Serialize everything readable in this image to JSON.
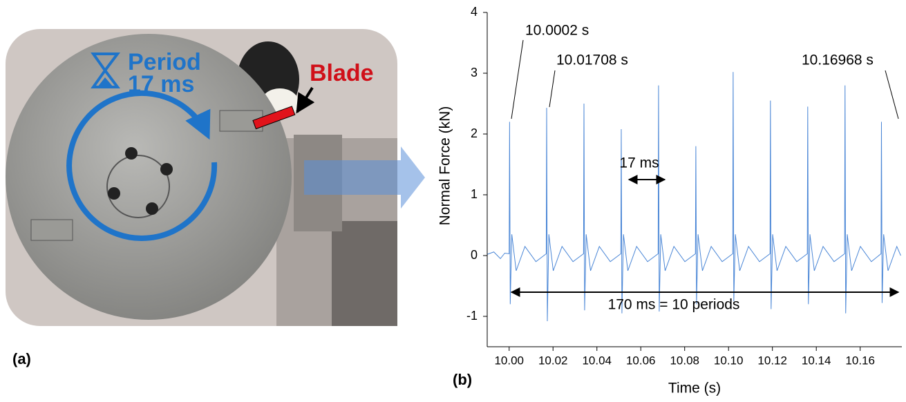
{
  "photo": {
    "period_label": "Period",
    "period_value": "17 ms",
    "blade_label": "Blade",
    "panel_label": "(a)"
  },
  "chart_data": {
    "type": "line",
    "panel_label": "(b)",
    "x_label": "Time (s)",
    "y_label": "Normal Force (kN)",
    "xlim": [
      9.99,
      10.179
    ],
    "ylim": [
      -1.5,
      4
    ],
    "xticks": [
      {
        "value": 10.0,
        "label": "10.00"
      },
      {
        "value": 10.02,
        "label": "10.02"
      },
      {
        "value": 10.04,
        "label": "10.04"
      },
      {
        "value": 10.06,
        "label": "10.06"
      },
      {
        "value": 10.08,
        "label": "10.08"
      },
      {
        "value": 10.1,
        "label": "10.10"
      },
      {
        "value": 10.12,
        "label": "10.12"
      },
      {
        "value": 10.14,
        "label": "10.14"
      },
      {
        "value": 10.16,
        "label": "10.16"
      }
    ],
    "yticks": [
      -1,
      0,
      1,
      2,
      3,
      4
    ],
    "annotations": [
      "10.0002 s",
      "10.01708 s",
      "10.16968 s",
      "17 ms",
      "170 ms = 10 periods"
    ],
    "series": [
      {
        "color": "#4a86d6",
        "x": [
          9.99,
          9.993,
          9.996,
          9.998,
          10.0,
          10.0002,
          10.0005,
          10.0012,
          10.0032,
          10.0072,
          10.0122,
          10.0169,
          10.0171,
          10.0174,
          10.0181,
          10.0201,
          10.0241,
          10.0291,
          10.0339,
          10.0341,
          10.0344,
          10.0351,
          10.0371,
          10.0411,
          10.0461,
          10.0509,
          10.0511,
          10.0514,
          10.0521,
          10.0541,
          10.0581,
          10.0631,
          10.0679,
          10.0681,
          10.0684,
          10.0691,
          10.0711,
          10.0751,
          10.0801,
          10.0849,
          10.0851,
          10.0854,
          10.0861,
          10.0881,
          10.0921,
          10.0971,
          10.1019,
          10.1021,
          10.1024,
          10.1031,
          10.1051,
          10.1091,
          10.1141,
          10.1189,
          10.1191,
          10.1194,
          10.1201,
          10.1221,
          10.1261,
          10.1311,
          10.1359,
          10.1361,
          10.1364,
          10.1371,
          10.1391,
          10.1431,
          10.1481,
          10.1529,
          10.1531,
          10.1534,
          10.1541,
          10.1561,
          10.1601,
          10.1651,
          10.1695,
          10.1697,
          10.17,
          10.1707,
          10.1727,
          10.1767,
          10.1785
        ],
        "values": [
          0.02,
          0.06,
          -0.05,
          0.04,
          0.03,
          2.2,
          -0.8,
          0.35,
          -0.25,
          0.15,
          -0.1,
          0.03,
          2.43,
          -1.08,
          0.35,
          -0.25,
          0.15,
          -0.1,
          0.03,
          2.5,
          -0.9,
          0.35,
          -0.25,
          0.15,
          -0.1,
          0.03,
          2.08,
          -0.95,
          0.35,
          -0.25,
          0.15,
          -0.1,
          0.03,
          2.8,
          -0.92,
          0.35,
          -0.25,
          0.15,
          -0.1,
          0.03,
          1.8,
          -0.8,
          0.35,
          -0.25,
          0.15,
          -0.1,
          0.03,
          3.02,
          -0.75,
          0.35,
          -0.25,
          0.15,
          -0.1,
          0.03,
          2.55,
          -0.88,
          0.35,
          -0.25,
          0.15,
          -0.1,
          0.03,
          2.45,
          -0.8,
          0.35,
          -0.25,
          0.15,
          -0.1,
          0.03,
          2.8,
          -0.95,
          0.35,
          -0.25,
          0.15,
          -0.1,
          0.03,
          2.2,
          -0.78,
          0.35,
          -0.25,
          0.15,
          0.0
        ]
      }
    ]
  }
}
